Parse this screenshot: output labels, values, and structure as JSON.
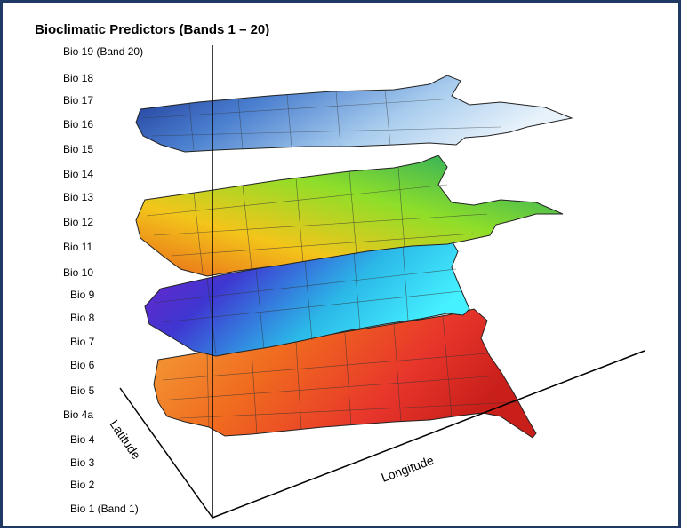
{
  "title": "Bioclimatic Predictors (Bands 1 – 20)",
  "bands": [
    "Bio 19 (Band 20)",
    "Bio 18",
    "Bio 17",
    "Bio 16",
    "Bio 15",
    "Bio 14",
    "Bio 13",
    "Bio 12",
    "Bio 11",
    "Bio 10",
    "Bio 9",
    "Bio 8",
    "Bio 7",
    "Bio 6",
    "Bio 5",
    "Bio 4a",
    "Bio 4",
    "Bio 3",
    "Bio 2",
    "Bio 1 (Band 1)"
  ],
  "axes": {
    "latitude": "Latitude",
    "longitude": "Longitude"
  },
  "layers": [
    {
      "name": "top-layer",
      "colors": [
        "#1a2f8f",
        "#4a7fcf",
        "#a9cdee",
        "#e8f2fb"
      ]
    },
    {
      "name": "second-layer",
      "colors": [
        "#0f9f6f",
        "#8ede2a",
        "#f3c51a",
        "#e8671b"
      ]
    },
    {
      "name": "third-layer",
      "colors": [
        "#7a1fc9",
        "#3f36d1",
        "#2bb9e8",
        "#45f0ff"
      ]
    },
    {
      "name": "bottom-layer",
      "colors": [
        "#f4a33a",
        "#f06a1f",
        "#e7352b",
        "#c81f1a"
      ]
    }
  ],
  "frame_color": "#1f3864"
}
